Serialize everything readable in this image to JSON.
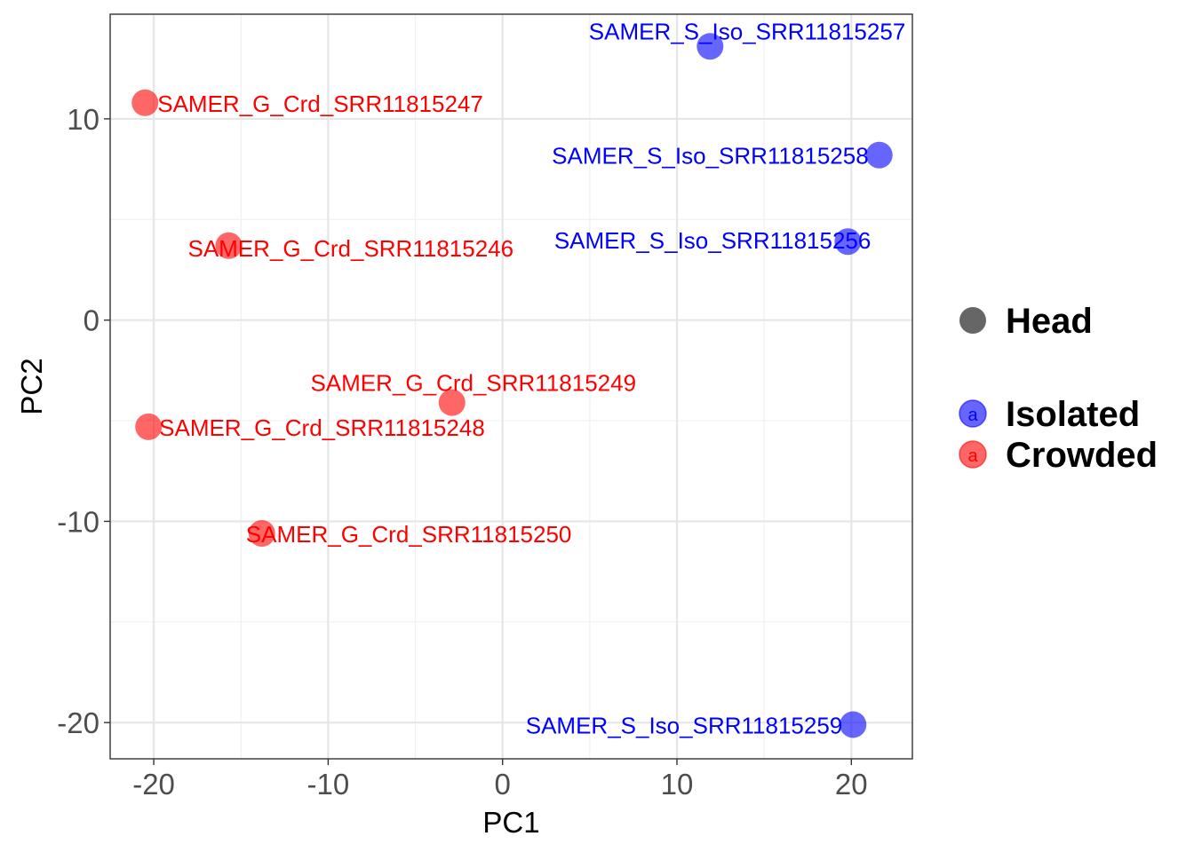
{
  "chart_data": {
    "type": "scatter",
    "xlabel": "PC1",
    "ylabel": "PC2",
    "xlim": [
      -22.5,
      23.5
    ],
    "ylim": [
      -21.8,
      15.2
    ],
    "xticks": [
      -20,
      -10,
      0,
      10,
      20
    ],
    "xtick_labels": [
      "-20",
      "-10",
      "0",
      "10",
      "20"
    ],
    "yticks": [
      -20,
      -10,
      0,
      10
    ],
    "ytick_labels": [
      "-20",
      "-10",
      "0",
      "10"
    ],
    "grid": true,
    "legend_placement": "right",
    "colors": {
      "Isolated": "#0000ff",
      "Crowded": "#ff0000"
    },
    "shape_legend": {
      "label": "Head",
      "marker": "circle"
    },
    "color_legend": [
      {
        "name": "Isolated",
        "key_glyph": "a"
      },
      {
        "name": "Crowded",
        "key_glyph": "a"
      }
    ],
    "series": [
      {
        "name": "Isolated",
        "points": [
          {
            "label": "SAMER_S_Iso_SRR11815257",
            "x": 11.9,
            "y": 13.6
          },
          {
            "label": "SAMER_S_Iso_SRR11815258",
            "x": 21.6,
            "y": 8.2
          },
          {
            "label": "SAMER_S_Iso_SRR11815256",
            "x": 19.8,
            "y": 3.9
          },
          {
            "label": "SAMER_S_Iso_SRR11815259",
            "x": 20.1,
            "y": -20.1
          }
        ]
      },
      {
        "name": "Crowded",
        "points": [
          {
            "label": "SAMER_G_Crd_SRR11815247",
            "x": -20.5,
            "y": 10.8
          },
          {
            "label": "SAMER_G_Crd_SRR11815246",
            "x": -15.7,
            "y": 3.7
          },
          {
            "label": "SAMER_G_Crd_SRR11815249",
            "x": -2.9,
            "y": -4.1
          },
          {
            "label": "SAMER_G_Crd_SRR11815248",
            "x": -20.3,
            "y": -5.3
          },
          {
            "label": "SAMER_G_Crd_SRR11815250",
            "x": -13.8,
            "y": -10.6
          }
        ]
      }
    ]
  }
}
